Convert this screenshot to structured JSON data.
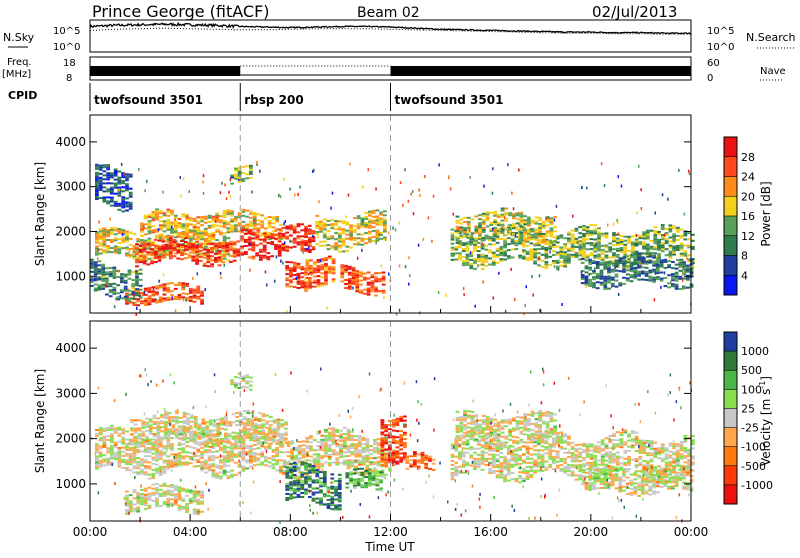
{
  "header": {
    "title": "Prince George (fitACF)",
    "beam": "Beam 02",
    "date": "02/Jul/2013"
  },
  "chart_data": [
    {
      "type": "line",
      "name_left": "N.Sky",
      "name_right": "N.Search",
      "left_ticks": [
        "10^5",
        "10^0"
      ],
      "right_ticks": [
        "10^5",
        "10^0"
      ],
      "x_range_hours": [
        0,
        24
      ],
      "sky_profile": [
        4.2,
        4.4,
        4.5,
        4.6,
        4.5,
        4.4,
        4.2,
        4.1,
        4.0,
        4.1,
        4.2,
        4.2,
        4.1,
        3.9,
        3.7,
        3.6,
        3.5,
        3.4,
        3.3,
        3.2,
        3.2,
        3.1,
        3.1,
        3.0,
        3.0
      ],
      "search_profile": [
        3.5,
        3.7,
        3.8,
        3.9,
        3.8,
        3.7,
        3.6,
        3.6,
        3.7,
        3.8,
        3.8,
        3.8,
        3.7,
        3.6,
        3.5,
        3.4,
        3.3,
        3.2,
        3.1,
        3.0,
        3.0,
        2.9,
        2.9,
        2.8,
        2.8
      ]
    },
    {
      "type": "area",
      "name_left": "Freq.",
      "unit_left": "[MHz]",
      "name_right": "Nave",
      "left_ticks": [
        "18",
        "8"
      ],
      "right_ticks": [
        "60",
        "0"
      ],
      "segments": [
        {
          "start": 0,
          "end": 6,
          "style": "solid"
        },
        {
          "start": 6,
          "end": 12,
          "style": "dotted"
        },
        {
          "start": 12,
          "end": 24,
          "style": "solid"
        }
      ]
    },
    {
      "type": "table",
      "name": "CPID",
      "segments": [
        {
          "start": 0,
          "end": 6,
          "label": "twofsound 3501"
        },
        {
          "start": 6,
          "end": 12,
          "label": "rbsp 200"
        },
        {
          "start": 12,
          "end": 24,
          "label": "twofsound 3501"
        }
      ]
    },
    {
      "type": "heatmap",
      "ylabel": "Slant Range [km]",
      "y_ticks": [
        1000,
        2000,
        3000,
        4000
      ],
      "ylim": [
        180,
        4600
      ],
      "colorbar_label": "Power [dB]",
      "colorbar_ticks": [
        "28",
        "24",
        "20",
        "16",
        "12",
        "8",
        "4"
      ],
      "colorbar_colors": [
        "#e81212",
        "#ff4a1a",
        "#ff8c1a",
        "#f5d01a",
        "#5aa05a",
        "#2e7c4e",
        "#1e3f9c",
        "#0a18f0"
      ],
      "bands": [
        {
          "x0": 0.2,
          "x1": 5.6,
          "y": 1700,
          "h": 280,
          "v": 0.55
        },
        {
          "x0": 1.8,
          "x1": 6.0,
          "y": 1550,
          "h": 260,
          "v": 0.85
        },
        {
          "x0": 2.0,
          "x1": 7.6,
          "y": 2150,
          "h": 260,
          "v": 0.6
        },
        {
          "x0": 6.0,
          "x1": 9.0,
          "y": 1750,
          "h": 300,
          "v": 0.9
        },
        {
          "x0": 7.8,
          "x1": 8.8,
          "y": 950,
          "h": 300,
          "v": 0.85
        },
        {
          "x0": 8.6,
          "x1": 9.8,
          "y": 1150,
          "h": 300,
          "v": 0.75
        },
        {
          "x0": 10.0,
          "x1": 11.8,
          "y": 900,
          "h": 260,
          "v": 0.8
        },
        {
          "x0": 1.4,
          "x1": 4.4,
          "y": 600,
          "h": 200,
          "v": 0.8
        },
        {
          "x0": 0.0,
          "x1": 2.0,
          "y": 900,
          "h": 350,
          "v": 0.35
        },
        {
          "x0": 9.0,
          "x1": 11.8,
          "y": 2000,
          "h": 350,
          "v": 0.55
        },
        {
          "x0": 14.4,
          "x1": 24.0,
          "y": 1650,
          "h": 380,
          "v": 0.45
        },
        {
          "x0": 14.6,
          "x1": 18.6,
          "y": 2100,
          "h": 300,
          "v": 0.5
        },
        {
          "x0": 19.6,
          "x1": 24.0,
          "y": 1100,
          "h": 300,
          "v": 0.3
        },
        {
          "x0": 5.6,
          "x1": 6.4,
          "y": 3250,
          "h": 180,
          "v": 0.4
        },
        {
          "x0": 0.2,
          "x1": 1.6,
          "y": 3000,
          "h": 450,
          "v": 0.2
        }
      ]
    },
    {
      "type": "heatmap",
      "xlabel": "Time UT",
      "ylabel": "Slant Range [km]",
      "x_ticks": [
        "00:00",
        "04:00",
        "08:00",
        "12:00",
        "16:00",
        "20:00",
        "00:00"
      ],
      "y_ticks": [
        1000,
        2000,
        3000,
        4000
      ],
      "ylim": [
        180,
        4600
      ],
      "colorbar_label": "Velocity [m s",
      "colorbar_label_sup": "-1",
      "colorbar_ticks": [
        "1000",
        "500",
        "100",
        "25",
        "-25",
        "-100",
        "-500",
        "-1000"
      ],
      "colorbar_colors": [
        "#1e3fa0",
        "#2f7a3a",
        "#49b849",
        "#8ade52",
        "#c8c8c8",
        "#ffa74a",
        "#ff7a10",
        "#ff3a0a",
        "#ee1010"
      ],
      "bands": [
        {
          "x0": 0.2,
          "x1": 12.0,
          "y": 1700,
          "h": 450,
          "v": 0.5
        },
        {
          "x0": 1.6,
          "x1": 7.8,
          "y": 2200,
          "h": 300,
          "v": 0.5
        },
        {
          "x0": 1.4,
          "x1": 4.4,
          "y": 650,
          "h": 250,
          "v": 0.5
        },
        {
          "x0": 7.8,
          "x1": 10.0,
          "y": 950,
          "h": 400,
          "v": 0.82
        },
        {
          "x0": 10.2,
          "x1": 11.6,
          "y": 1050,
          "h": 220,
          "v": 0.7
        },
        {
          "x0": 11.6,
          "x1": 12.6,
          "y": 2050,
          "h": 500,
          "v": 0.15
        },
        {
          "x0": 12.6,
          "x1": 13.8,
          "y": 1450,
          "h": 200,
          "v": 0.25
        },
        {
          "x0": 14.4,
          "x1": 24.0,
          "y": 1600,
          "h": 450,
          "v": 0.5
        },
        {
          "x0": 14.6,
          "x1": 18.6,
          "y": 2200,
          "h": 300,
          "v": 0.5
        },
        {
          "x0": 19.6,
          "x1": 24.0,
          "y": 1050,
          "h": 250,
          "v": 0.5
        },
        {
          "x0": 5.6,
          "x1": 6.4,
          "y": 3300,
          "h": 180,
          "v": 0.55
        }
      ]
    }
  ]
}
